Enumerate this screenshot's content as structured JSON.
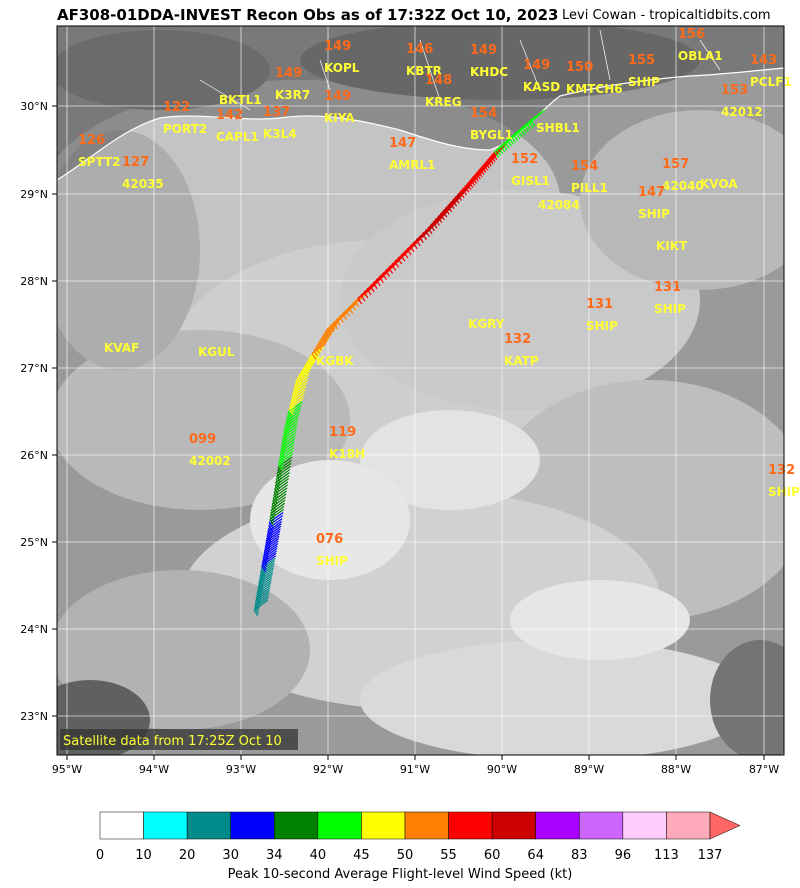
{
  "header": {
    "title": "AF308-01DDA-INVEST Recon Obs as of 17:32Z Oct 10, 2023",
    "credit": "Levi Cowan - tropicaltidbits.com"
  },
  "map": {
    "satellite_caption": "Satellite data from 17:25Z Oct 10",
    "lat_ticks": [
      "30°N",
      "29°N",
      "28°N",
      "27°N",
      "26°N",
      "25°N",
      "24°N",
      "23°N"
    ],
    "lon_ticks": [
      "95°W",
      "94°W",
      "93°W",
      "92°W",
      "91°W",
      "90°W",
      "89°W",
      "88°W",
      "87°W"
    ],
    "stations": [
      {
        "id": "KOPL",
        "val": "149"
      },
      {
        "id": "KBTR",
        "val": "146"
      },
      {
        "id": "KHDC",
        "val": "149"
      },
      {
        "id": "K3R7",
        "val": "149"
      },
      {
        "id": "KREG",
        "val": "148"
      },
      {
        "id": "KASD",
        "val": "149"
      },
      {
        "id": "KMTCH6",
        "val": "150"
      },
      {
        "id": "SHIP",
        "val": "155"
      },
      {
        "id": "OBLA1",
        "val": "156"
      },
      {
        "id": "PCLF1",
        "val": "143"
      },
      {
        "id": "BKTL1",
        "val": ""
      },
      {
        "id": "PORT2",
        "val": "122"
      },
      {
        "id": "CAPL1",
        "val": "142"
      },
      {
        "id": "K3L4",
        "val": "137"
      },
      {
        "id": "KIYA",
        "val": "149"
      },
      {
        "id": "BYGL1",
        "val": "154"
      },
      {
        "id": "SHBL1",
        "val": ""
      },
      {
        "id": "42012",
        "val": "153"
      },
      {
        "id": "SPTT2",
        "val": "126"
      },
      {
        "id": "42035",
        "val": "127"
      },
      {
        "id": "AMRL1",
        "val": "147"
      },
      {
        "id": "GISL1",
        "val": "152"
      },
      {
        "id": "PILL1",
        "val": "154"
      },
      {
        "id": "42040",
        "val": "157"
      },
      {
        "id": "KVOA",
        "val": ""
      },
      {
        "id": "42084",
        "val": ""
      },
      {
        "id": "SHIP",
        "val": "147"
      },
      {
        "id": "KIKT",
        "val": ""
      },
      {
        "id": "KGRY",
        "val": ""
      },
      {
        "id": "SHIP",
        "val": "131"
      },
      {
        "id": "SHIP",
        "val": "131"
      },
      {
        "id": "KVAF",
        "val": ""
      },
      {
        "id": "KGUL",
        "val": ""
      },
      {
        "id": "KGBK",
        "val": ""
      },
      {
        "id": "KATP",
        "val": "132"
      },
      {
        "id": "42002",
        "val": "099"
      },
      {
        "id": "K18H",
        "val": "119"
      },
      {
        "id": "SHIP",
        "val": "132"
      },
      {
        "id": "SHIP",
        "val": "076"
      }
    ]
  },
  "colorbar": {
    "label": "Peak 10-second Average Flight-level Wind Speed (kt)",
    "bins": [
      {
        "lo": "0",
        "color": "#ffffff"
      },
      {
        "lo": "10",
        "color": "#00ffff"
      },
      {
        "lo": "20",
        "color": "#008b8b"
      },
      {
        "lo": "30",
        "color": "#0000ff"
      },
      {
        "lo": "34",
        "color": "#008000"
      },
      {
        "lo": "40",
        "color": "#00ff00"
      },
      {
        "lo": "45",
        "color": "#ffff00"
      },
      {
        "lo": "50",
        "color": "#ff8000"
      },
      {
        "lo": "55",
        "color": "#ff0000"
      },
      {
        "lo": "60",
        "color": "#cc0000"
      },
      {
        "lo": "64",
        "color": "#aa00ff"
      },
      {
        "lo": "83",
        "color": "#cc66ff"
      },
      {
        "lo": "96",
        "color": "#ffccff"
      },
      {
        "lo": "113",
        "color": "#ffaabb"
      }
    ],
    "ticks": [
      "0",
      "10",
      "20",
      "30",
      "34",
      "40",
      "45",
      "50",
      "55",
      "60",
      "64",
      "83",
      "96",
      "113",
      "137"
    ],
    "extend_color": "#ff6666"
  },
  "flight_track": {
    "colors": [
      "#008b8b",
      "#0000ff",
      "#008000",
      "#00ff00",
      "#ffff00",
      "#ff8000",
      "#ff0000",
      "#cc0000",
      "#ff0000",
      "#00ff00"
    ]
  }
}
